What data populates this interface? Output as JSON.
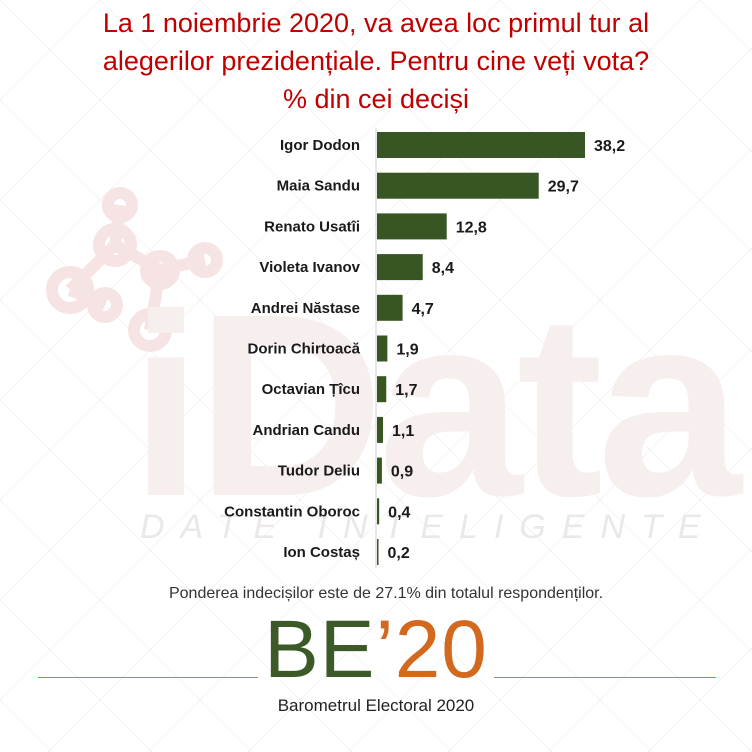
{
  "title_lines": [
    "La 1 noiembrie 2020, va avea loc primul tur al",
    "alegerilor prezidențiale. Pentru cine veți vota?",
    "% din cei deciși"
  ],
  "watermark": {
    "brand": "iData",
    "tagline": "DATE INTELIGENTE"
  },
  "chart_data": {
    "type": "bar",
    "orientation": "horizontal",
    "title": "La 1 noiembrie 2020, va avea loc primul tur al alegerilor prezidențiale. Pentru cine veți vota? % din cei deciși",
    "categories": [
      "Igor Dodon",
      "Maia Sandu",
      "Renato Usatîi",
      "Violeta Ivanov",
      "Andrei Năstase",
      "Dorin Chirtoacă",
      "Octavian Țîcu",
      "Andrian Candu",
      "Tudor Deliu",
      "Constantin Oboroc",
      "Ion Costaș"
    ],
    "values": [
      38.2,
      29.7,
      12.8,
      8.4,
      4.7,
      1.9,
      1.7,
      1.1,
      0.9,
      0.4,
      0.2
    ],
    "value_labels": [
      "38,2",
      "29,7",
      "12,8",
      "8,4",
      "4,7",
      "1,9",
      "1,7",
      "1,1",
      "0,9",
      "0,4",
      "0,2"
    ],
    "xlim": [
      0,
      38.2
    ],
    "bar_color": "#375623",
    "grid": false,
    "legend": "none"
  },
  "footnote": "Ponderea indecișilor este de 27.1% din totalul respondenților.",
  "logo": {
    "be": "BE",
    "apostrophe": "’",
    "year": "20",
    "subtitle": "Barometrul Electoral 2020"
  },
  "colors": {
    "title": "#c00000",
    "bar": "#375623",
    "logo_green": "#3c5a27",
    "logo_orange": "#d2691e"
  }
}
